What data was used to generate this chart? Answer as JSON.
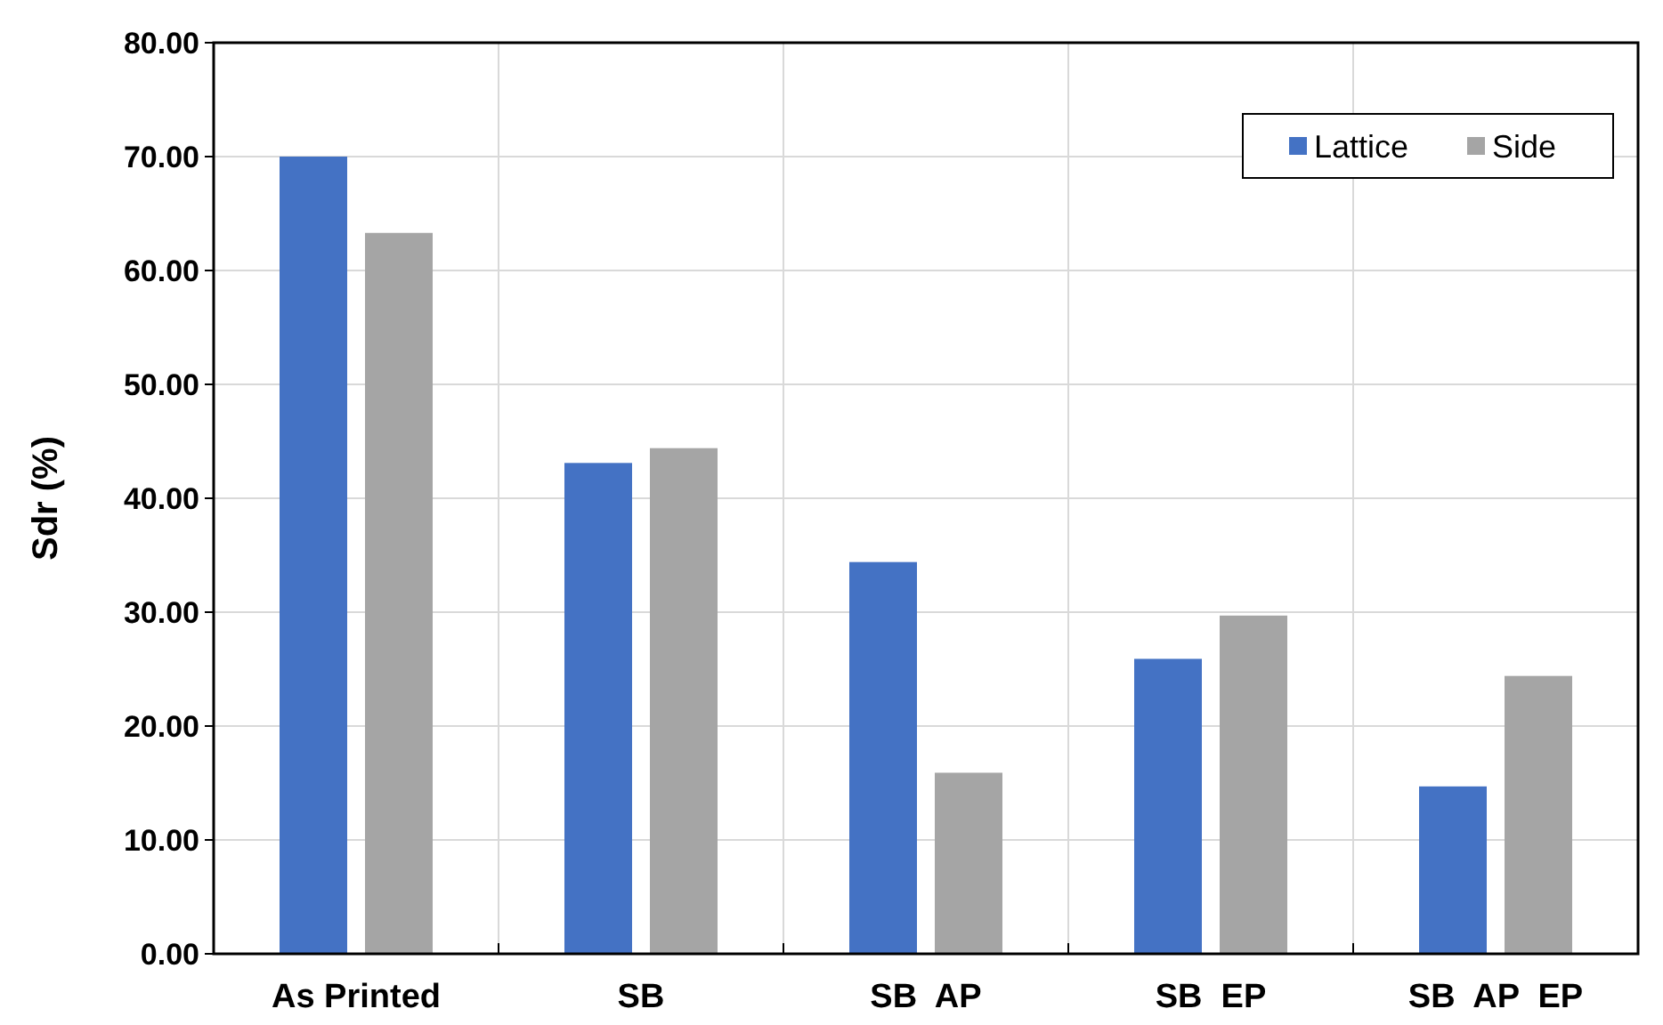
{
  "chart_data": {
    "type": "bar",
    "ylabel": "Sdr (%)",
    "categories": [
      "As Printed",
      "SB",
      "SB  AP",
      "SB  EP",
      "SB  AP  EP"
    ],
    "series": [
      {
        "name": "Lattice",
        "color": "#4472c4",
        "values": [
          70.0,
          43.1,
          34.4,
          25.9,
          14.7
        ]
      },
      {
        "name": "Side",
        "color": "#a5a5a5",
        "values": [
          63.3,
          44.4,
          15.9,
          29.7,
          24.4
        ]
      }
    ],
    "ylim": [
      0,
      80
    ],
    "yticks": [
      {
        "value": 0,
        "label": "0.00"
      },
      {
        "value": 10,
        "label": "10.00"
      },
      {
        "value": 20,
        "label": "20.00"
      },
      {
        "value": 30,
        "label": "30.00"
      },
      {
        "value": 40,
        "label": "40.00"
      },
      {
        "value": 50,
        "label": "50.00"
      },
      {
        "value": 60,
        "label": "60.00"
      },
      {
        "value": 70,
        "label": "70.00"
      },
      {
        "value": 80,
        "label": "80.00"
      }
    ],
    "grid": true,
    "legend": "top right"
  }
}
